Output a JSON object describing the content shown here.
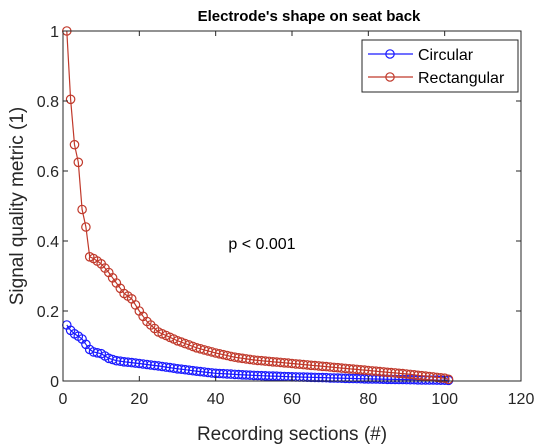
{
  "chart_data": {
    "type": "line",
    "title": "Electrode's shape on seat back",
    "xlabel": "Recording sections (#)",
    "ylabel": "Signal quality metric (1)",
    "xlim": [
      0,
      120
    ],
    "ylim": [
      0,
      1
    ],
    "xticks": [
      0,
      20,
      40,
      60,
      80,
      100,
      120
    ],
    "yticks": [
      0,
      0.2,
      0.4,
      0.6,
      0.8,
      1
    ],
    "xtick_labels": [
      "0",
      "20",
      "40",
      "60",
      "80",
      "100",
      "120"
    ],
    "ytick_labels": [
      "0",
      "0.2",
      "0.4",
      "0.6",
      "0.8",
      "1"
    ],
    "grid": false,
    "legend_position": "top-right",
    "annotation": "p < 0.001",
    "series": [
      {
        "name": "Circular",
        "color": "#1a1aff",
        "marker": "circle",
        "n_points": 101,
        "anchors": [
          [
            1,
            0.16
          ],
          [
            2,
            0.145
          ],
          [
            3,
            0.135
          ],
          [
            4,
            0.128
          ],
          [
            5,
            0.12
          ],
          [
            6,
            0.105
          ],
          [
            7,
            0.09
          ],
          [
            8,
            0.083
          ],
          [
            10,
            0.078
          ],
          [
            12,
            0.065
          ],
          [
            14,
            0.058
          ],
          [
            16,
            0.055
          ],
          [
            20,
            0.05
          ],
          [
            25,
            0.043
          ],
          [
            30,
            0.035
          ],
          [
            35,
            0.028
          ],
          [
            40,
            0.022
          ],
          [
            50,
            0.016
          ],
          [
            60,
            0.012
          ],
          [
            70,
            0.009
          ],
          [
            80,
            0.006
          ],
          [
            90,
            0.004
          ],
          [
            101,
            0.002
          ]
        ]
      },
      {
        "name": "Rectangular",
        "color": "#c0392b",
        "marker": "circle",
        "n_points": 101,
        "anchors": [
          [
            1,
            1.0
          ],
          [
            2,
            0.805
          ],
          [
            3,
            0.675
          ],
          [
            4,
            0.625
          ],
          [
            5,
            0.49
          ],
          [
            6,
            0.44
          ],
          [
            7,
            0.355
          ],
          [
            8,
            0.35
          ],
          [
            10,
            0.335
          ],
          [
            12,
            0.31
          ],
          [
            14,
            0.28
          ],
          [
            16,
            0.25
          ],
          [
            18,
            0.235
          ],
          [
            20,
            0.2
          ],
          [
            22,
            0.17
          ],
          [
            25,
            0.14
          ],
          [
            30,
            0.115
          ],
          [
            35,
            0.095
          ],
          [
            40,
            0.08
          ],
          [
            45,
            0.068
          ],
          [
            50,
            0.06
          ],
          [
            60,
            0.05
          ],
          [
            70,
            0.04
          ],
          [
            80,
            0.03
          ],
          [
            90,
            0.02
          ],
          [
            100,
            0.008
          ],
          [
            101,
            0.005
          ]
        ]
      }
    ]
  }
}
